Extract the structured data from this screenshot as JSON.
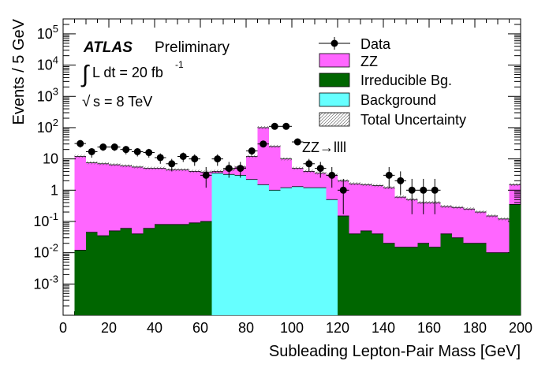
{
  "chart_data": {
    "type": "histogram",
    "ylabel": "Events / 5 GeV",
    "xlabel": "Subleading Lepton-Pair Mass [GeV]",
    "xlim": [
      0,
      200
    ],
    "ylim": [
      0.0001,
      300000
    ],
    "yscale": "log",
    "bin_width": 5,
    "x_ticks": [
      0,
      20,
      40,
      60,
      80,
      100,
      120,
      140,
      160,
      180,
      200
    ],
    "x_tick_labels": [
      "0",
      "20",
      "40",
      "60",
      "80",
      "100",
      "120",
      "140",
      "160",
      "180",
      "200"
    ],
    "y_tick_labels": [
      "10-3",
      "10-2",
      "10-1",
      "1",
      "10",
      "102",
      "103",
      "104",
      "105"
    ],
    "annotations": {
      "experiment": "ATLAS",
      "status": "Preliminary",
      "lumi_integral": "∫",
      "lumi_text": "L dt = 20 fb",
      "lumi_exp": "-1",
      "energy_sqrt": "√",
      "energy_text": "s = 8 TeV",
      "channel": "ZZ→llll"
    },
    "legend": {
      "position": "top-right",
      "entries": [
        "Data",
        "ZZ",
        "Irreducible Bg.",
        "Background",
        "Total Uncertainty"
      ]
    },
    "colors": {
      "zz": "#ff66ff",
      "irreducible": "#006600",
      "background": "#66ffff",
      "data": "#000000"
    },
    "series": [
      {
        "name": "Irreducible Bg.",
        "bin_low_edges": [
          5,
          10,
          15,
          20,
          25,
          30,
          35,
          40,
          45,
          50,
          55,
          60,
          65,
          70,
          75,
          80,
          85,
          90,
          95,
          100,
          105,
          110,
          115,
          120,
          125,
          130,
          135,
          140,
          145,
          150,
          155,
          160,
          165,
          170,
          175,
          180,
          185,
          190,
          195
        ],
        "values": [
          0.012,
          0.045,
          0.035,
          0.05,
          0.06,
          0.04,
          0.06,
          0.08,
          0.08,
          0.08,
          0.09,
          0.1,
          0.15,
          0.2,
          0.2,
          0.22,
          0.2,
          0.2,
          0.2,
          0.2,
          0.2,
          0.2,
          0.25,
          0.15,
          0.04,
          0.05,
          0.04,
          0.02,
          0.015,
          0.015,
          0.02,
          0.015,
          0.04,
          0.03,
          0.02,
          0.02,
          0.01,
          0.01,
          0.35
        ]
      },
      {
        "name": "Background",
        "bin_low_edges": [
          65,
          70,
          75,
          80,
          85,
          90,
          95,
          100,
          105,
          110,
          115
        ],
        "values": [
          3.5,
          3.2,
          3.0,
          2.2,
          1.5,
          1.0,
          1.2,
          1.3,
          1.2,
          1.2,
          0.5
        ]
      },
      {
        "name": "ZZ (total stack)",
        "bin_low_edges": [
          5,
          10,
          15,
          20,
          25,
          30,
          35,
          40,
          45,
          50,
          55,
          60,
          65,
          70,
          75,
          80,
          85,
          90,
          95,
          100,
          105,
          110,
          115,
          120,
          125,
          130,
          135,
          140,
          145,
          150,
          155,
          160,
          165,
          170,
          175,
          180,
          185,
          190,
          195
        ],
        "values": [
          12,
          7.5,
          7,
          6.5,
          6,
          5.5,
          5,
          5,
          4.5,
          4.5,
          4,
          3.8,
          4.0,
          4.5,
          5.5,
          12,
          100,
          25,
          10,
          5,
          4,
          3.5,
          3.0,
          2.0,
          1.6,
          1.5,
          1.4,
          1.2,
          0.6,
          0.5,
          0.4,
          0.4,
          0.3,
          0.28,
          0.25,
          0.2,
          0.15,
          0.12,
          1.5
        ]
      },
      {
        "name": "Data",
        "x": [
          7.5,
          12.5,
          17.5,
          22.5,
          27.5,
          32.5,
          37.5,
          42.5,
          47.5,
          52.5,
          57.5,
          62.5,
          67.5,
          72.5,
          77.5,
          82.5,
          87.5,
          92.5,
          97.5,
          102.5,
          107.5,
          112.5,
          117.5,
          122.5,
          142.5,
          147.5,
          152.5,
          157.5,
          162.5
        ],
        "y": [
          31,
          17,
          24,
          24,
          20,
          17,
          16,
          11,
          7,
          12,
          10,
          3,
          10,
          5,
          5,
          18,
          30,
          110,
          110,
          35,
          7,
          5,
          3,
          1,
          3,
          2,
          1,
          1,
          1
        ],
        "yerr_low": [
          8,
          6,
          6,
          6,
          6,
          5,
          5,
          4,
          3,
          4,
          4,
          1.8,
          4,
          2.5,
          2.5,
          5,
          6,
          11,
          11,
          7,
          3,
          2.5,
          1.8,
          0.83,
          1.8,
          1.3,
          0.83,
          0.83,
          0.83
        ],
        "yerr_high": [
          7,
          5,
          6,
          6,
          5,
          5,
          5,
          4,
          3,
          4,
          4,
          2.5,
          4,
          3,
          3,
          5,
          6,
          11,
          11,
          6,
          3,
          3,
          2.5,
          1.3,
          2.5,
          2,
          1.3,
          1.3,
          1.3
        ]
      }
    ]
  }
}
